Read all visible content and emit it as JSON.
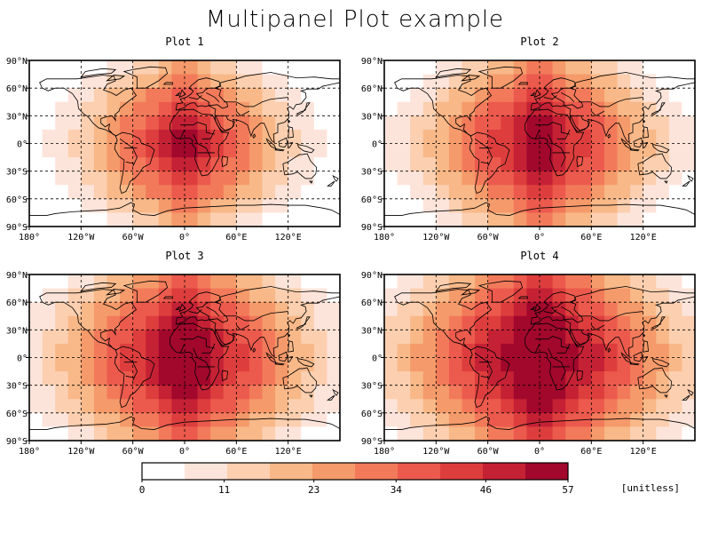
{
  "title": "Multipanel Plot example",
  "chart_data": {
    "type": "heatmap",
    "projection": "equirectangular world map with coastlines and country borders",
    "xlim": [
      -180,
      180
    ],
    "ylim": [
      -90,
      90
    ],
    "x_tick_labels": [
      "180°",
      "120°W",
      "60°W",
      "0°",
      "60°E",
      "120°E"
    ],
    "y_tick_labels": [
      "90°N",
      "60°N",
      "30°N",
      "0°",
      "30°S",
      "60°S",
      "90°S"
    ],
    "grid": true,
    "grid_style": "dashed",
    "panels": [
      {
        "title": "Plot 1",
        "max_value": 45,
        "falloff": 0.9
      },
      {
        "title": "Plot 2",
        "max_value": 49,
        "falloff": 0.75
      },
      {
        "title": "Plot 3",
        "max_value": 52,
        "falloff": 0.6
      },
      {
        "title": "Plot 4",
        "max_value": 56,
        "falloff": 0.52
      }
    ],
    "colorbar": {
      "tick_values": [
        0,
        11,
        23,
        34,
        46,
        57
      ],
      "tick_labels": [
        "0",
        "11",
        "23",
        "34",
        "46",
        "57"
      ],
      "unit": "[unitless]",
      "colors": [
        "#ffffff",
        "#fde4da",
        "#fbcfaf",
        "#f8b888",
        "#f59a6a",
        "#f27a5a",
        "#ec5a4d",
        "#dd3e3d",
        "#c52135",
        "#a2082c"
      ]
    }
  }
}
